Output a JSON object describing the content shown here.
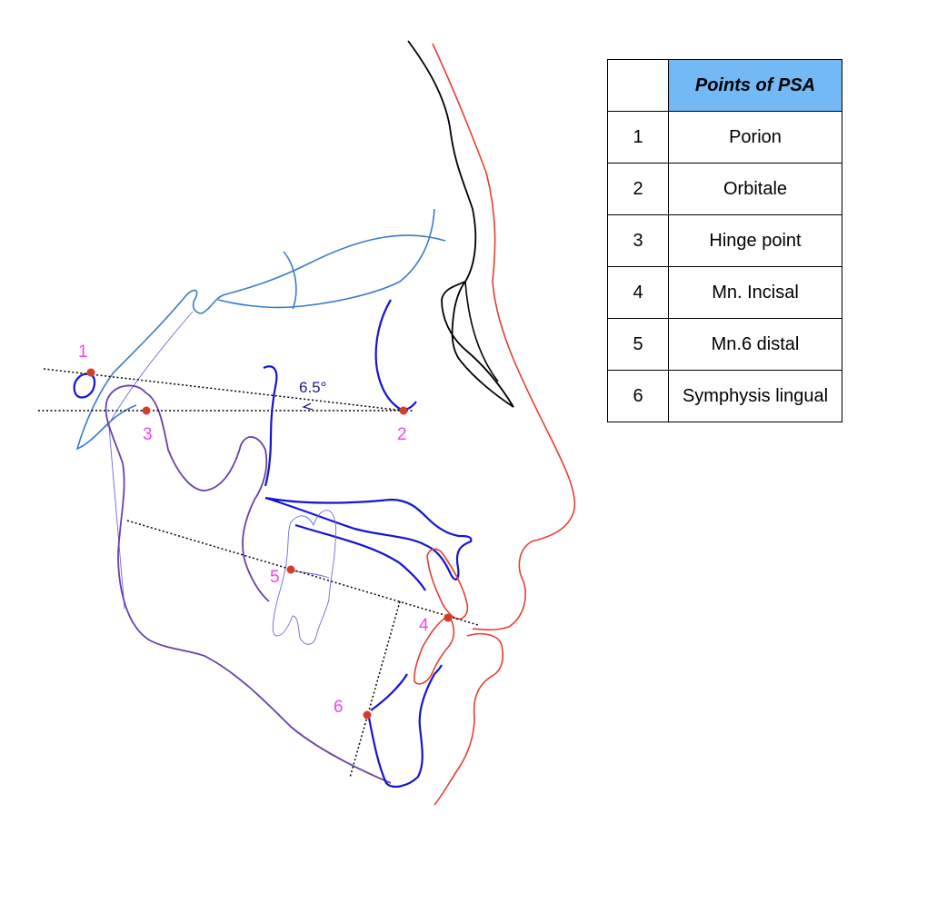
{
  "colors": {
    "soft_tissue": "#e53e30",
    "profile_outline": "#000000",
    "cranial_base": "#3a7bc8",
    "mandible": "#6a3fa8",
    "maxilla_symphysis": "#1414d4",
    "molar": "#6a6ad8",
    "landmark": "#d83a2a",
    "point_label": "#ee44ee",
    "angle_text": "#1a1a8a",
    "table_header_fill": "#73b9f5"
  },
  "angle": {
    "label": "6.5°"
  },
  "points": [
    {
      "number": "1",
      "name": "Porion"
    },
    {
      "number": "2",
      "name": "Orbitale"
    },
    {
      "number": "3",
      "name": "Hinge point"
    },
    {
      "number": "4",
      "name": "Mn. Incisal"
    },
    {
      "number": "5",
      "name": "Mn.6 distal"
    },
    {
      "number": "6",
      "name": "Symphysis lingual"
    }
  ],
  "legend": {
    "header_number": "",
    "header_title": "Points of PSA",
    "rows": [
      {
        "number": "1",
        "name": "Porion"
      },
      {
        "number": "2",
        "name": "Orbitale"
      },
      {
        "number": "3",
        "name": "Hinge point"
      },
      {
        "number": "4",
        "name": "Mn. Incisal"
      },
      {
        "number": "5",
        "name": "Mn.6 distal"
      },
      {
        "number": "6",
        "name": "Symphysis lingual"
      }
    ]
  }
}
